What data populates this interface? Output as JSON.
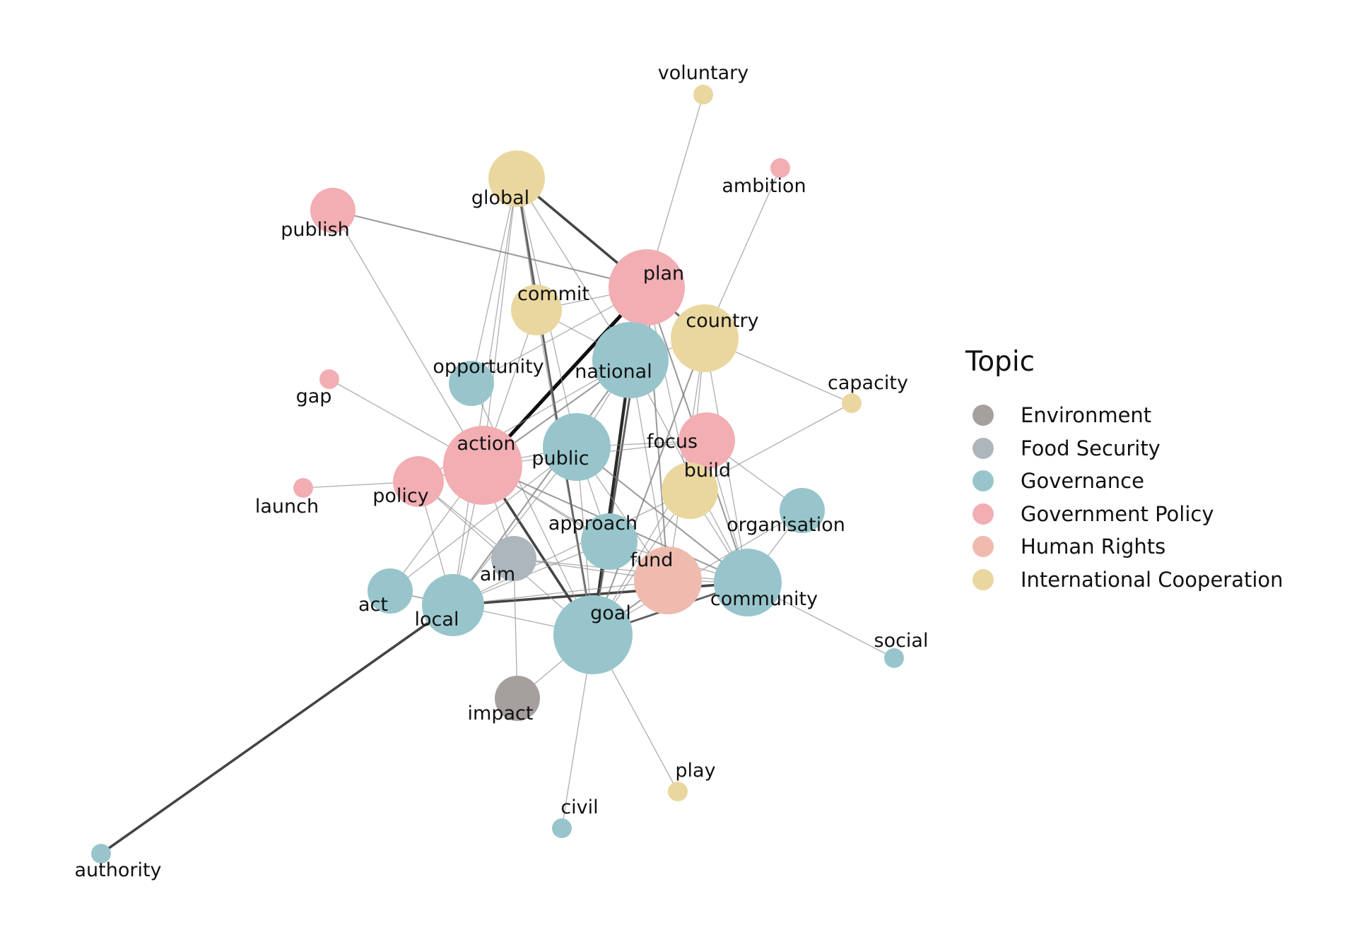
{
  "colors": {
    "Environment": "#a5a09e",
    "Food Security": "#adb5bd",
    "Governance": "#98c5cc",
    "Government Policy": "#f2aeb3",
    "Human Rights": "#efbbaf",
    "International Cooperation": "#ead79f"
  },
  "legend": {
    "title": "Topic",
    "items": [
      "Environment",
      "Food Security",
      "Governance",
      "Government Policy",
      "Human Rights",
      "International Cooperation"
    ]
  },
  "nodes": [
    {
      "id": "voluntary",
      "topic": "International Cooperation",
      "size": 1
    },
    {
      "id": "ambition",
      "topic": "Government Policy",
      "size": 1
    },
    {
      "id": "global",
      "topic": "International Cooperation",
      "size": 4
    },
    {
      "id": "publish",
      "topic": "Government Policy",
      "size": 2
    },
    {
      "id": "plan",
      "topic": "Government Policy",
      "size": 8
    },
    {
      "id": "commit",
      "topic": "International Cooperation",
      "size": 3
    },
    {
      "id": "country",
      "topic": "International Cooperation",
      "size": 6
    },
    {
      "id": "opportunity",
      "topic": "Governance",
      "size": 2
    },
    {
      "id": "national",
      "topic": "Governance",
      "size": 8
    },
    {
      "id": "gap",
      "topic": "Government Policy",
      "size": 1
    },
    {
      "id": "capacity",
      "topic": "International Cooperation",
      "size": 1
    },
    {
      "id": "action",
      "topic": "Government Policy",
      "size": 9
    },
    {
      "id": "public",
      "topic": "Governance",
      "size": 6
    },
    {
      "id": "focus",
      "topic": "Government Policy",
      "size": 4
    },
    {
      "id": "policy",
      "topic": "Government Policy",
      "size": 3
    },
    {
      "id": "launch",
      "topic": "Government Policy",
      "size": 1
    },
    {
      "id": "build",
      "topic": "International Cooperation",
      "size": 4
    },
    {
      "id": "organisation",
      "topic": "Governance",
      "size": 2
    },
    {
      "id": "approach",
      "topic": "Governance",
      "size": 4
    },
    {
      "id": "aim",
      "topic": "Food Security",
      "size": 2
    },
    {
      "id": "fund",
      "topic": "Human Rights",
      "size": 6
    },
    {
      "id": "community",
      "topic": "Governance",
      "size": 6
    },
    {
      "id": "act",
      "topic": "Governance",
      "size": 2
    },
    {
      "id": "local",
      "topic": "Governance",
      "size": 5
    },
    {
      "id": "goal",
      "topic": "Governance",
      "size": 9
    },
    {
      "id": "social",
      "topic": "Governance",
      "size": 1
    },
    {
      "id": "impact",
      "topic": "Environment",
      "size": 2
    },
    {
      "id": "play",
      "topic": "International Cooperation",
      "size": 1
    },
    {
      "id": "civil",
      "topic": "Governance",
      "size": 1
    },
    {
      "id": "authority",
      "topic": "Governance",
      "size": 1
    }
  ],
  "edges": [
    {
      "source": "action",
      "target": "plan",
      "weight": 6
    },
    {
      "source": "local",
      "target": "authority",
      "weight": 4
    },
    {
      "source": "global",
      "target": "plan",
      "weight": 4
    },
    {
      "source": "action",
      "target": "goal",
      "weight": 4
    },
    {
      "source": "national",
      "target": "goal",
      "weight": 5
    },
    {
      "source": "local",
      "target": "community",
      "weight": 4
    },
    {
      "source": "goal",
      "target": "community",
      "weight": 3
    },
    {
      "source": "global",
      "target": "goal",
      "weight": 3
    },
    {
      "source": "plan",
      "target": "goal",
      "weight": 3
    },
    {
      "source": "publish",
      "target": "plan",
      "weight": 2
    },
    {
      "source": "plan",
      "target": "country",
      "weight": 3
    },
    {
      "source": "country",
      "target": "goal",
      "weight": 2
    },
    {
      "source": "action",
      "target": "national",
      "weight": 2
    },
    {
      "source": "global",
      "target": "commit",
      "weight": 2
    },
    {
      "source": "global",
      "target": "action",
      "weight": 1
    },
    {
      "source": "global",
      "target": "national",
      "weight": 1
    },
    {
      "source": "global",
      "target": "public",
      "weight": 1
    },
    {
      "source": "global",
      "target": "local",
      "weight": 1
    },
    {
      "source": "national",
      "target": "local",
      "weight": 2
    },
    {
      "source": "public",
      "target": "community",
      "weight": 2
    },
    {
      "source": "public",
      "target": "goal",
      "weight": 1
    },
    {
      "source": "action",
      "target": "community",
      "weight": 2
    },
    {
      "source": "plan",
      "target": "community",
      "weight": 2
    },
    {
      "source": "plan",
      "target": "fund",
      "weight": 2
    },
    {
      "source": "national",
      "target": "fund",
      "weight": 1
    },
    {
      "source": "national",
      "target": "community",
      "weight": 1
    },
    {
      "source": "fund",
      "target": "goal",
      "weight": 2
    },
    {
      "source": "action",
      "target": "local",
      "weight": 1
    },
    {
      "source": "action",
      "target": "fund",
      "weight": 1
    },
    {
      "source": "action",
      "target": "focus",
      "weight": 1
    },
    {
      "source": "action",
      "target": "approach",
      "weight": 1
    },
    {
      "source": "approach",
      "target": "goal",
      "weight": 1
    },
    {
      "source": "approach",
      "target": "community",
      "weight": 1
    },
    {
      "source": "approach",
      "target": "local",
      "weight": 1
    },
    {
      "source": "public",
      "target": "local",
      "weight": 1
    },
    {
      "source": "public",
      "target": "national",
      "weight": 1
    },
    {
      "source": "public",
      "target": "fund",
      "weight": 1
    },
    {
      "source": "commit",
      "target": "national",
      "weight": 1
    },
    {
      "source": "commit",
      "target": "action",
      "weight": 1
    },
    {
      "source": "commit",
      "target": "goal",
      "weight": 1
    },
    {
      "source": "commit",
      "target": "plan",
      "weight": 1
    },
    {
      "source": "opportunity",
      "target": "global",
      "weight": 1
    },
    {
      "source": "opportunity",
      "target": "plan",
      "weight": 1
    },
    {
      "source": "opportunity",
      "target": "goal",
      "weight": 1
    },
    {
      "source": "country",
      "target": "fund",
      "weight": 1
    },
    {
      "source": "country",
      "target": "community",
      "weight": 1
    },
    {
      "source": "country",
      "target": "capacity",
      "weight": 1
    },
    {
      "source": "country",
      "target": "national",
      "weight": 1
    },
    {
      "source": "country",
      "target": "build",
      "weight": 1
    },
    {
      "source": "focus",
      "target": "goal",
      "weight": 1
    },
    {
      "source": "focus",
      "target": "community",
      "weight": 1
    },
    {
      "source": "focus",
      "target": "organisation",
      "weight": 1
    },
    {
      "source": "focus",
      "target": "public",
      "weight": 1
    },
    {
      "source": "build",
      "target": "capacity",
      "weight": 1
    },
    {
      "source": "build",
      "target": "community",
      "weight": 1
    },
    {
      "source": "build",
      "target": "local",
      "weight": 1
    },
    {
      "source": "build",
      "target": "goal",
      "weight": 1
    },
    {
      "source": "build",
      "target": "plan",
      "weight": 1
    },
    {
      "source": "policy",
      "target": "action",
      "weight": 1
    },
    {
      "source": "policy",
      "target": "local",
      "weight": 1
    },
    {
      "source": "policy",
      "target": "goal",
      "weight": 1
    },
    {
      "source": "policy",
      "target": "national",
      "weight": 1
    },
    {
      "source": "policy",
      "target": "aim",
      "weight": 1
    },
    {
      "source": "launch",
      "target": "policy",
      "weight": 1
    },
    {
      "source": "gap",
      "target": "action",
      "weight": 1
    },
    {
      "source": "publish",
      "target": "action",
      "weight": 1
    },
    {
      "source": "voluntary",
      "target": "plan",
      "weight": 1
    },
    {
      "source": "ambition",
      "target": "country",
      "weight": 1
    },
    {
      "source": "aim",
      "target": "action",
      "weight": 1
    },
    {
      "source": "aim",
      "target": "impact",
      "weight": 1
    },
    {
      "source": "aim",
      "target": "fund",
      "weight": 1
    },
    {
      "source": "aim",
      "target": "community",
      "weight": 1
    },
    {
      "source": "act",
      "target": "action",
      "weight": 1
    },
    {
      "source": "act",
      "target": "public",
      "weight": 1
    },
    {
      "source": "act",
      "target": "goal",
      "weight": 1
    },
    {
      "source": "act",
      "target": "local",
      "weight": 1
    },
    {
      "source": "organisation",
      "target": "community",
      "weight": 1
    },
    {
      "source": "organisation",
      "target": "goal",
      "weight": 1
    },
    {
      "source": "community",
      "target": "social",
      "weight": 1
    },
    {
      "source": "goal",
      "target": "impact",
      "weight": 1
    },
    {
      "source": "goal",
      "target": "civil",
      "weight": 1
    },
    {
      "source": "goal",
      "target": "play",
      "weight": 1
    },
    {
      "source": "fund",
      "target": "local",
      "weight": 1
    },
    {
      "source": "fund",
      "target": "community",
      "weight": 1
    },
    {
      "source": "national",
      "target": "plan",
      "weight": 1
    },
    {
      "source": "public",
      "target": "action",
      "weight": 1
    },
    {
      "source": "public",
      "target": "approach",
      "weight": 1
    }
  ]
}
